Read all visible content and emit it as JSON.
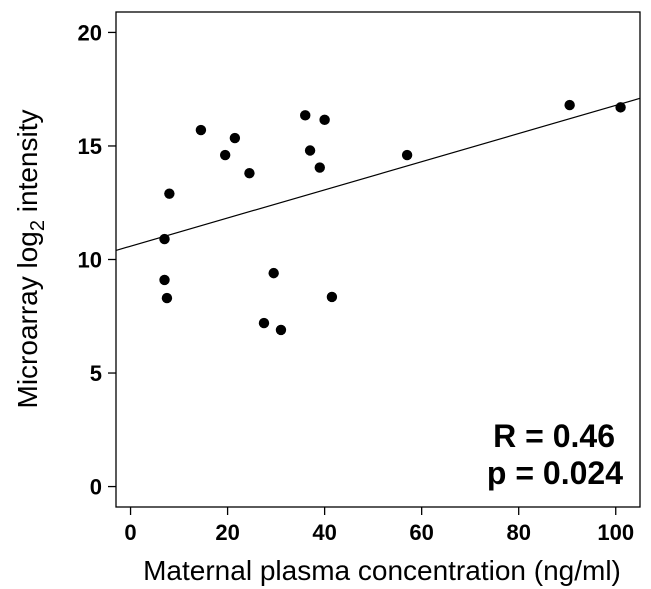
{
  "chart_data": {
    "type": "scatter",
    "title": "",
    "xlabel": "Maternal plasma concentration (ng/ml)",
    "ylabel": {
      "prefix": "Microarray log",
      "subscript": "2",
      "suffix": " intensity"
    },
    "xlim": [
      -3,
      105
    ],
    "ylim": [
      -0.9,
      20.9
    ],
    "xticks": [
      0,
      20,
      40,
      60,
      80,
      100
    ],
    "yticks": [
      0,
      5,
      10,
      15,
      20
    ],
    "grid": false,
    "legend": "none",
    "points": [
      {
        "x": 7.0,
        "y": 10.9
      },
      {
        "x": 8.0,
        "y": 12.9
      },
      {
        "x": 7.0,
        "y": 9.1
      },
      {
        "x": 7.5,
        "y": 8.3
      },
      {
        "x": 14.5,
        "y": 15.7
      },
      {
        "x": 19.5,
        "y": 14.6
      },
      {
        "x": 21.5,
        "y": 15.35
      },
      {
        "x": 24.5,
        "y": 13.8
      },
      {
        "x": 27.5,
        "y": 7.2
      },
      {
        "x": 29.5,
        "y": 9.4
      },
      {
        "x": 31.0,
        "y": 6.9
      },
      {
        "x": 36.0,
        "y": 16.35
      },
      {
        "x": 37.0,
        "y": 14.8
      },
      {
        "x": 39.0,
        "y": 14.05
      },
      {
        "x": 40.0,
        "y": 16.15
      },
      {
        "x": 41.5,
        "y": 8.35
      },
      {
        "x": 57.0,
        "y": 14.6
      },
      {
        "x": 90.5,
        "y": 16.8
      },
      {
        "x": 101.0,
        "y": 16.7
      }
    ],
    "fit_line": {
      "x": [
        -3,
        105
      ],
      "y": [
        10.4,
        17.1
      ]
    },
    "annotations": [
      "R = 0.46",
      "p = 0.024"
    ]
  }
}
